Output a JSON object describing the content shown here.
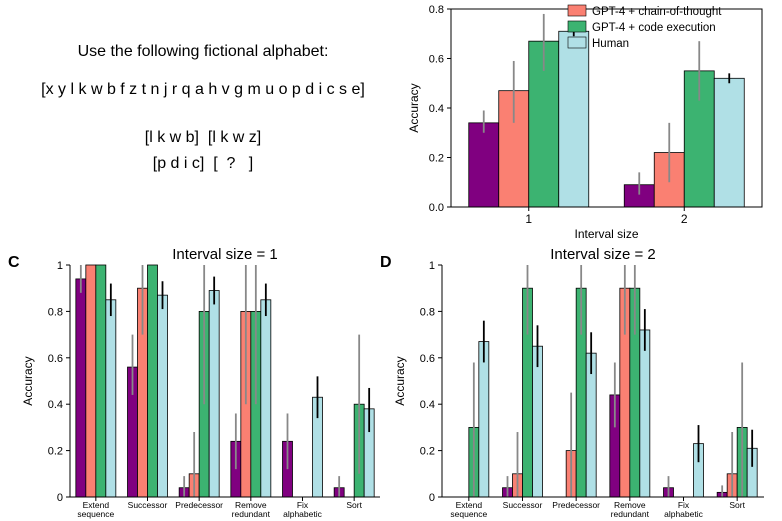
{
  "puzzle": {
    "instruction": "Use the following fictional alphabet:",
    "alphabet": "[x y l k w b f z t n j r q a h v g m u o p d i c s e]",
    "example_line_1": "[l k w b]  [l k w z]",
    "example_line_2": "[p d i c]  [  ?   ]"
  },
  "colors": {
    "gpt4": "#800080",
    "cot": "#FA8072",
    "code": "#3CB371",
    "human": "#B0E0E6",
    "err_gpt": "#888888",
    "err_human": "#000000"
  },
  "chart_data": [
    {
      "id": "top",
      "type": "bar",
      "title": "",
      "xlabel": "Interval size",
      "ylabel": "Accuracy",
      "ylim": [
        0,
        0.8
      ],
      "yticks": [
        "0.0",
        "0.2",
        "0.4",
        "0.6",
        "0.8"
      ],
      "categories": [
        "1",
        "2"
      ],
      "legend": [
        "GPT-4 + chain-of-thought",
        "GPT-4 + code execution",
        "Human"
      ],
      "legend_position": "top-right",
      "series": [
        {
          "name": "GPT-4",
          "color_key": "gpt4",
          "values": [
            0.34,
            0.09
          ],
          "err": [
            [
              0.3,
              0.39
            ],
            [
              0.05,
              0.14
            ]
          ]
        },
        {
          "name": "GPT-4 + chain-of-thought",
          "color_key": "cot",
          "values": [
            0.47,
            0.22
          ],
          "err": [
            [
              0.34,
              0.59
            ],
            [
              0.1,
              0.34
            ]
          ]
        },
        {
          "name": "GPT-4 + code execution",
          "color_key": "code",
          "values": [
            0.67,
            0.55
          ],
          "err": [
            [
              0.55,
              0.78
            ],
            [
              0.43,
              0.67
            ]
          ]
        },
        {
          "name": "Human",
          "color_key": "human",
          "values": [
            0.71,
            0.52
          ],
          "err": [
            [
              0.69,
              0.73
            ],
            [
              0.5,
              0.54
            ]
          ]
        }
      ]
    },
    {
      "id": "C",
      "panel_label": "C",
      "type": "bar",
      "title": "Interval size = 1",
      "ylabel": "Accuracy",
      "ylim": [
        0,
        1
      ],
      "yticks": [
        "0",
        "0.2",
        "0.4",
        "0.6",
        "0.8",
        "1"
      ],
      "categories": [
        [
          "Extend",
          "sequence"
        ],
        [
          "Successor"
        ],
        [
          "Predecessor"
        ],
        [
          "Remove",
          "redundant"
        ],
        [
          "Fix",
          "alphabetic"
        ],
        [
          "Sort"
        ]
      ],
      "series": [
        {
          "name": "GPT-4",
          "color_key": "gpt4",
          "values": [
            0.94,
            0.56,
            0.04,
            0.24,
            0.24,
            0.04
          ],
          "err": [
            [
              0.88,
              1.0
            ],
            [
              0.44,
              0.7
            ],
            [
              0.0,
              0.09
            ],
            [
              0.12,
              0.36
            ],
            [
              0.12,
              0.36
            ],
            [
              0.0,
              0.09
            ]
          ]
        },
        {
          "name": "GPT-4 + chain-of-thought",
          "color_key": "cot",
          "values": [
            1.0,
            0.9,
            0.1,
            0.8,
            0.0,
            0.0
          ],
          "err": [
            [
              1.0,
              1.0
            ],
            [
              0.7,
              1.0
            ],
            [
              0.0,
              0.28
            ],
            [
              0.4,
              1.0
            ],
            null,
            null
          ]
        },
        {
          "name": "GPT-4 + code execution",
          "color_key": "code",
          "values": [
            1.0,
            1.0,
            0.8,
            0.8,
            0.0,
            0.4
          ],
          "err": [
            [
              1.0,
              1.0
            ],
            [
              1.0,
              1.0
            ],
            [
              0.4,
              1.0
            ],
            [
              0.4,
              1.0
            ],
            null,
            [
              0.1,
              0.7
            ]
          ]
        },
        {
          "name": "Human",
          "color_key": "human",
          "values": [
            0.85,
            0.87,
            0.89,
            0.85,
            0.43,
            0.38
          ],
          "err": [
            [
              0.78,
              0.92
            ],
            [
              0.81,
              0.93
            ],
            [
              0.83,
              0.95
            ],
            [
              0.78,
              0.92
            ],
            [
              0.34,
              0.52
            ],
            [
              0.28,
              0.47
            ]
          ]
        }
      ]
    },
    {
      "id": "D",
      "panel_label": "D",
      "type": "bar",
      "title": "Interval size = 2",
      "ylabel": "Accuracy",
      "ylim": [
        0,
        1
      ],
      "yticks": [
        "0",
        "0.2",
        "0.4",
        "0.6",
        "0.8",
        "1"
      ],
      "categories": [
        [
          "Extend",
          "sequence"
        ],
        [
          "Successor"
        ],
        [
          "Predecessor"
        ],
        [
          "Remove",
          "redundant"
        ],
        [
          "Fix",
          "alphabetic"
        ],
        [
          "Sort"
        ]
      ],
      "series": [
        {
          "name": "GPT-4",
          "color_key": "gpt4",
          "values": [
            0.0,
            0.04,
            0.0,
            0.44,
            0.04,
            0.02
          ],
          "err": [
            null,
            [
              0.0,
              0.09
            ],
            null,
            [
              0.3,
              0.58
            ],
            [
              0.0,
              0.09
            ],
            [
              0.0,
              0.05
            ]
          ]
        },
        {
          "name": "GPT-4 + chain-of-thought",
          "color_key": "cot",
          "values": [
            0.0,
            0.1,
            0.2,
            0.9,
            0.0,
            0.1
          ],
          "err": [
            null,
            [
              0.0,
              0.28
            ],
            [
              0.0,
              0.45
            ],
            [
              0.7,
              1.0
            ],
            null,
            [
              0.0,
              0.28
            ]
          ]
        },
        {
          "name": "GPT-4 + code execution",
          "color_key": "code",
          "values": [
            0.3,
            0.9,
            0.9,
            0.9,
            0.0,
            0.3
          ],
          "err": [
            [
              0.0,
              0.58
            ],
            [
              0.7,
              1.0
            ],
            [
              0.7,
              1.0
            ],
            [
              0.7,
              1.0
            ],
            null,
            [
              0.0,
              0.58
            ]
          ]
        },
        {
          "name": "Human",
          "color_key": "human",
          "values": [
            0.67,
            0.65,
            0.62,
            0.72,
            0.23,
            0.21
          ],
          "err": [
            [
              0.58,
              0.76
            ],
            [
              0.56,
              0.74
            ],
            [
              0.53,
              0.71
            ],
            [
              0.63,
              0.81
            ],
            [
              0.15,
              0.31
            ],
            [
              0.13,
              0.29
            ]
          ]
        }
      ]
    }
  ]
}
